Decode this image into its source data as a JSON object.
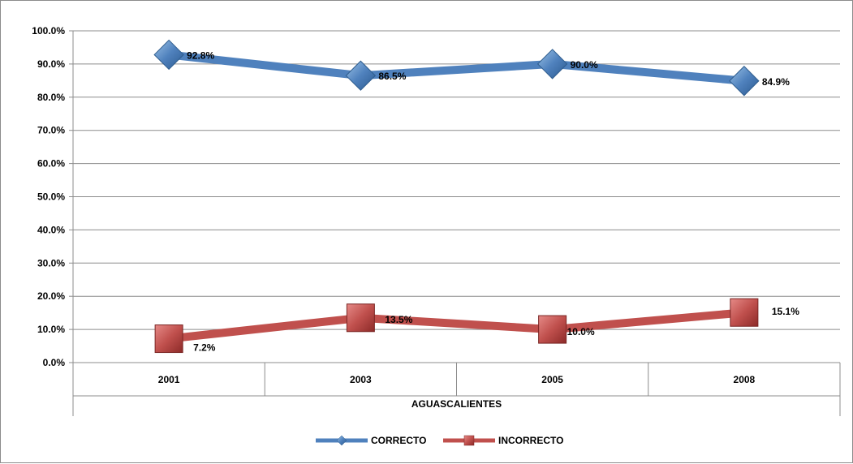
{
  "chart_data": {
    "type": "line",
    "categories": [
      "2001",
      "2003",
      "2005",
      "2008"
    ],
    "group_label": "AGUASCALIENTES",
    "ylim": [
      0,
      100
    ],
    "yticks": [
      "0.0%",
      "10.0%",
      "20.0%",
      "30.0%",
      "40.0%",
      "50.0%",
      "60.0%",
      "70.0%",
      "80.0%",
      "90.0%",
      "100.0%"
    ],
    "grid": true,
    "legend_position": "bottom",
    "series": [
      {
        "name": "CORRECTO",
        "values": [
          92.8,
          86.5,
          90.0,
          84.9
        ],
        "labels": [
          "92.8%",
          "86.5%",
          "90.0%",
          "84.9%"
        ],
        "color": "#4f81bd",
        "marker": "diamond"
      },
      {
        "name": "INCORRECTO",
        "values": [
          7.2,
          13.5,
          10.0,
          15.1
        ],
        "labels": [
          "7.2%",
          "13.5%",
          "10.0%",
          "15.1%"
        ],
        "color": "#c0504d",
        "marker": "square"
      }
    ]
  }
}
